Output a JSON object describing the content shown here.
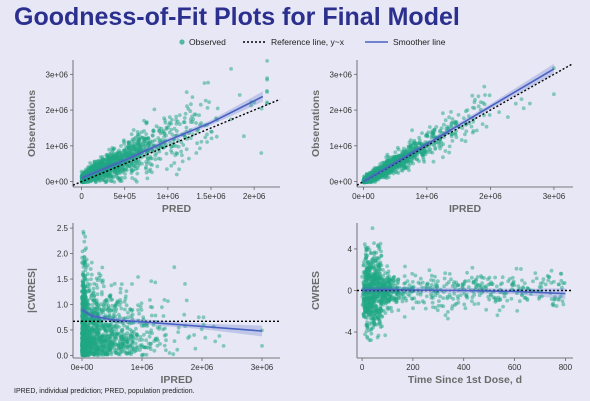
{
  "title": "Goodness-of-Fit Plots for Final Model",
  "footnote": "IPRED, individual prediction; PRED, population prediction.",
  "legend": {
    "observed": "Observed",
    "reference": "Reference line, y~x",
    "smoother": "Smoother line"
  },
  "colors": {
    "observed": "#1fa884",
    "smoother": "#4a62c4",
    "reference": "#000000",
    "title": "#2b2f8e",
    "background": "#e7e7f5"
  },
  "chart_data": [
    {
      "type": "scatter",
      "xlabel": "PRED",
      "ylabel": "Observations",
      "xlim": [
        -100000,
        2300000
      ],
      "ylim": [
        -150000,
        3400000
      ],
      "xticks": [
        0,
        500000,
        1000000,
        1500000,
        2000000
      ],
      "xtick_labels": [
        "0",
        "5e+05",
        "1e+06",
        "1.5e+06",
        "2e+06"
      ],
      "yticks": [
        0,
        1000000,
        2000000,
        3000000
      ],
      "ytick_labels": [
        "0e+00",
        "1e+06",
        "2e+06",
        "3e+06"
      ],
      "reference_line": {
        "type": "y=x"
      },
      "smoother": {
        "x": [
          0,
          500000,
          1000000,
          1500000,
          2100000
        ],
        "y": [
          100000,
          600000,
          1150000,
          1650000,
          2380000
        ]
      }
    },
    {
      "type": "scatter",
      "xlabel": "IPRED",
      "ylabel": "Observations",
      "xlim": [
        -100000,
        3300000
      ],
      "ylim": [
        -150000,
        3400000
      ],
      "xticks": [
        0,
        1000000,
        2000000,
        3000000
      ],
      "xtick_labels": [
        "0e+00",
        "1e+06",
        "2e+06",
        "3e+06"
      ],
      "yticks": [
        0,
        1000000,
        2000000,
        3000000
      ],
      "ytick_labels": [
        "0e+00",
        "1e+06",
        "2e+06",
        "3e+06"
      ],
      "reference_line": {
        "type": "y=x"
      },
      "smoother": {
        "x": [
          0,
          1000000,
          2000000,
          3000000
        ],
        "y": [
          0,
          1050000,
          2100000,
          3150000
        ]
      }
    },
    {
      "type": "scatter",
      "xlabel": "IPRED",
      "ylabel": "|CWRES|",
      "xlim": [
        -150000,
        3300000
      ],
      "ylim": [
        -0.05,
        2.6
      ],
      "xticks": [
        0,
        1000000,
        2000000,
        3000000
      ],
      "xtick_labels": [
        "0e+00",
        "1e+06",
        "2e+06",
        "3e+06"
      ],
      "yticks": [
        0,
        0.5,
        1,
        1.5,
        2,
        2.5
      ],
      "ytick_labels": [
        "0.0",
        "0.5",
        "1.0",
        "1.5",
        "2.0",
        "2.5"
      ],
      "reference_line": {
        "type": "horizontal",
        "y": 0.67
      },
      "smoother": {
        "x": [
          0,
          150000,
          500000,
          1000000,
          2000000,
          3000000
        ],
        "y": [
          0.9,
          0.78,
          0.7,
          0.66,
          0.57,
          0.48
        ]
      }
    },
    {
      "type": "scatter",
      "xlabel": "Time Since 1st Dose, d",
      "ylabel": "CWRES",
      "xlim": [
        -20,
        830
      ],
      "ylim": [
        -6.5,
        6.5
      ],
      "xticks": [
        0,
        200,
        400,
        600,
        800
      ],
      "xtick_labels": [
        "0",
        "200",
        "400",
        "600",
        "800"
      ],
      "yticks": [
        -4,
        0,
        4
      ],
      "ytick_labels": [
        "-4",
        "0",
        "4"
      ],
      "reference_line": {
        "type": "horizontal",
        "y": 0
      },
      "smoother": {
        "x": [
          0,
          100,
          200,
          400,
          600,
          800
        ],
        "y": [
          0.05,
          0.1,
          0.05,
          0,
          -0.1,
          -0.3
        ]
      }
    }
  ]
}
